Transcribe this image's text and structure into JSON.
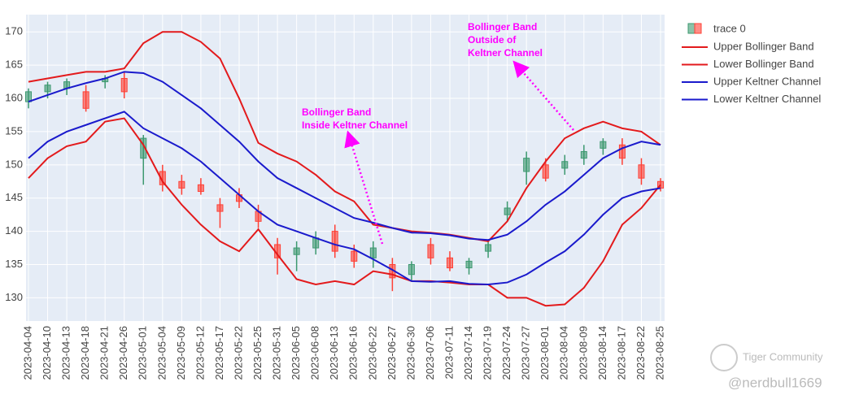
{
  "chart_data": {
    "type": "candlestick",
    "categories": [
      "2023-04-04",
      "2023-04-10",
      "2023-04-13",
      "2023-04-18",
      "2023-04-21",
      "2023-04-26",
      "2023-05-01",
      "2023-05-04",
      "2023-05-09",
      "2023-05-12",
      "2023-05-17",
      "2023-05-22",
      "2023-05-25",
      "2023-05-31",
      "2023-06-05",
      "2023-06-08",
      "2023-06-13",
      "2023-06-16",
      "2023-06-22",
      "2023-06-27",
      "2023-06-30",
      "2023-07-06",
      "2023-07-11",
      "2023-07-14",
      "2023-07-19",
      "2023-07-24",
      "2023-07-27",
      "2023-08-01",
      "2023-08-04",
      "2023-08-09",
      "2023-08-14",
      "2023-08-17",
      "2023-08-22",
      "2023-08-25"
    ],
    "candles": {
      "name": "trace 0",
      "increasing_color": "#3D9970",
      "decreasing_color": "#FF4136",
      "open": [
        159.5,
        161,
        161.5,
        161,
        162.5,
        163,
        151,
        149,
        147.5,
        147,
        144,
        145.5,
        143,
        138,
        136.5,
        137.5,
        140,
        137,
        136,
        135,
        133.5,
        138,
        136,
        134.5,
        137,
        142.5,
        149,
        150,
        149.5,
        151,
        152.5,
        153,
        150,
        147.5
      ],
      "high": [
        161.5,
        162.5,
        163,
        162,
        163.5,
        164,
        154.5,
        150,
        148.5,
        148,
        145,
        146.5,
        144,
        139,
        138.5,
        140,
        141,
        138,
        138.5,
        136,
        135.5,
        139,
        137,
        136,
        138.5,
        144.5,
        152,
        151,
        151.5,
        153,
        154,
        154,
        151,
        148
      ],
      "low": [
        158.5,
        160,
        160.5,
        158,
        161.5,
        160,
        147,
        146,
        145.5,
        145.5,
        140.5,
        143.5,
        140.5,
        133.5,
        134,
        136.5,
        136,
        134.5,
        134.5,
        131,
        132.5,
        135,
        134,
        133.5,
        136,
        141.5,
        147,
        147.5,
        148.5,
        150,
        151.5,
        150,
        147,
        146
      ],
      "close": [
        161,
        162,
        162.5,
        158.5,
        163,
        161,
        154,
        147,
        146.5,
        146,
        143,
        144.5,
        141.5,
        136,
        137.5,
        139,
        137,
        135.5,
        137.5,
        133,
        135,
        136,
        134.5,
        135.5,
        138,
        143.5,
        151,
        148,
        150.5,
        152,
        153.5,
        151,
        148,
        146.5
      ]
    },
    "series": [
      {
        "name": "Upper Bollinger Band",
        "color": "#e31a1c",
        "values": [
          162.5,
          163,
          163.5,
          164,
          164,
          164.5,
          168.3,
          170,
          170,
          168.5,
          166,
          160,
          153.3,
          151.7,
          150.5,
          148.5,
          146,
          144.5,
          141,
          140.5,
          140,
          139.8,
          139.5,
          139,
          138.5,
          141.5,
          146.5,
          150.5,
          154,
          155.5,
          156.5,
          155.5,
          155,
          153
        ]
      },
      {
        "name": "Lower Bollinger Band",
        "color": "#e31a1c",
        "values": [
          148,
          151,
          152.8,
          153.5,
          156.5,
          157,
          153,
          147.5,
          144,
          141,
          138.5,
          137,
          140.3,
          136.5,
          132.8,
          132,
          132.5,
          132,
          134,
          133.5,
          132.5,
          132.5,
          132.3,
          132,
          132,
          130,
          130,
          128.8,
          129,
          131.5,
          135.5,
          141,
          143.5,
          147
        ]
      },
      {
        "name": "Upper Keltner Channel",
        "color": "#1a1acc",
        "values": [
          159.5,
          160.5,
          161.5,
          162.3,
          163,
          164,
          163.8,
          162.5,
          160.5,
          158.5,
          156,
          153.5,
          150.5,
          148,
          146.5,
          145,
          143.5,
          142,
          141.3,
          140.5,
          139.8,
          139.7,
          139.4,
          138.9,
          138.7,
          139.5,
          141.5,
          144,
          146,
          148.5,
          151,
          152.5,
          153.5,
          153
        ]
      },
      {
        "name": "Lower Keltner Channel",
        "color": "#1a1acc",
        "values": [
          151,
          153.5,
          155,
          156,
          157,
          158,
          155.5,
          154,
          152.5,
          150.5,
          148,
          145.5,
          143,
          141,
          140,
          139,
          138,
          137.3,
          135.8,
          134.2,
          132.5,
          132.4,
          132.5,
          132.1,
          132,
          132.3,
          133.5,
          135.3,
          137,
          139.5,
          142.5,
          145,
          146,
          146.5
        ]
      }
    ],
    "ylim": [
      126.5,
      172.6
    ],
    "yticks": [
      130,
      135,
      140,
      145,
      150,
      155,
      160,
      165,
      170
    ],
    "grid": true,
    "annotations": [
      {
        "text": [
          "Bollinger Band",
          "Inside Keltner Channel"
        ],
        "color": "#ff00ff"
      },
      {
        "text": [
          "Bollinger Band",
          "Outside of",
          "Keltner Channel"
        ],
        "color": "#ff00ff"
      }
    ]
  },
  "watermark": {
    "brand": "Tiger Community",
    "user": "@nerdbull1669"
  }
}
